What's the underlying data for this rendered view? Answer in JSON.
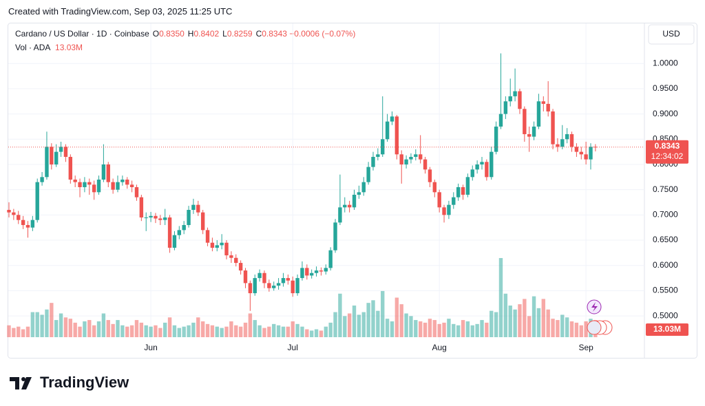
{
  "chart_data": {
    "type": "candlestick",
    "watermark": "Created with TradingView.com, Sep 03, 2025 11:25 UTC",
    "symbol": "Cardano / US Dollar · 1D · Coinbase",
    "ohlc": [
      {
        "key": "O",
        "value": "0.8350"
      },
      {
        "key": "H",
        "value": "0.8402"
      },
      {
        "key": "L",
        "value": "0.8259"
      },
      {
        "key": "C",
        "value": "0.8343"
      }
    ],
    "change": "−0.0006 (−0.07%)",
    "volume_title": "Vol · ADA",
    "volume_value": "13.03M",
    "currency": "USD",
    "price_label": "0.8343",
    "countdown": "12:34:02",
    "volume_label": "13.03M",
    "brand": "TradingView",
    "up_color": "#26a69a",
    "down_color": "#ef5350",
    "grid": true,
    "ylim": [
      0.417,
      1.078
    ],
    "yticks": [
      {
        "value": 0.5,
        "label": "0.5000"
      },
      {
        "value": 0.55,
        "label": "0.5500"
      },
      {
        "value": 0.6,
        "label": "0.6000"
      },
      {
        "value": 0.65,
        "label": "0.6500"
      },
      {
        "value": 0.7,
        "label": "0.7000"
      },
      {
        "value": 0.75,
        "label": "0.7500"
      },
      {
        "value": 0.8,
        "label": "0.8000"
      },
      {
        "value": 0.85,
        "label": "0.8500"
      },
      {
        "value": 0.9,
        "label": "0.9000"
      },
      {
        "value": 0.95,
        "label": "0.9500"
      },
      {
        "value": 1.0,
        "label": "1.0000"
      }
    ],
    "categories": [
      null,
      null,
      null,
      null,
      null,
      null,
      null,
      null,
      null,
      null,
      null,
      null,
      null,
      null,
      null,
      null,
      null,
      null,
      null,
      null,
      null,
      null,
      null,
      null,
      null,
      null,
      null,
      null,
      null,
      null,
      "Jun",
      null,
      null,
      null,
      null,
      null,
      null,
      null,
      null,
      null,
      null,
      null,
      null,
      null,
      null,
      null,
      null,
      null,
      null,
      null,
      null,
      null,
      null,
      null,
      null,
      null,
      null,
      null,
      null,
      null,
      "Jul",
      null,
      null,
      null,
      null,
      null,
      null,
      null,
      null,
      null,
      null,
      null,
      null,
      null,
      null,
      null,
      null,
      null,
      null,
      null,
      null,
      null,
      null,
      null,
      null,
      null,
      null,
      null,
      null,
      null,
      null,
      "Aug",
      null,
      null,
      null,
      null,
      null,
      null,
      null,
      null,
      null,
      null,
      null,
      null,
      null,
      null,
      null,
      null,
      null,
      null,
      null,
      null,
      null,
      null,
      null,
      null,
      null,
      null,
      null,
      null,
      null,
      null,
      "Sep",
      null,
      null
    ],
    "open": [
      0.71,
      0.705,
      0.7,
      0.69,
      0.68,
      0.675,
      0.69,
      0.765,
      0.775,
      0.835,
      0.8,
      0.825,
      0.835,
      0.815,
      0.77,
      0.765,
      0.755,
      0.765,
      0.76,
      0.745,
      0.77,
      0.8,
      0.765,
      0.75,
      0.765,
      0.77,
      0.76,
      0.755,
      0.735,
      0.695,
      0.695,
      0.698,
      0.693,
      0.69,
      0.695,
      0.635,
      0.66,
      0.67,
      0.68,
      0.71,
      0.72,
      0.705,
      0.67,
      0.645,
      0.635,
      0.64,
      0.645,
      0.62,
      0.615,
      0.605,
      0.59,
      0.565,
      0.545,
      0.575,
      0.585,
      0.565,
      0.555,
      0.56,
      0.565,
      0.575,
      0.57,
      0.545,
      0.575,
      0.595,
      0.58,
      0.585,
      0.59,
      0.588,
      0.595,
      0.63,
      0.685,
      0.715,
      0.72,
      0.715,
      0.74,
      0.745,
      0.765,
      0.795,
      0.815,
      0.82,
      0.85,
      0.885,
      0.895,
      0.82,
      0.8,
      0.81,
      0.815,
      0.82,
      0.81,
      0.79,
      0.765,
      0.745,
      0.715,
      0.7,
      0.72,
      0.735,
      0.755,
      0.74,
      0.775,
      0.79,
      0.8,
      0.805,
      0.775,
      0.825,
      0.875,
      0.9,
      0.925,
      0.935,
      0.945,
      0.91,
      0.86,
      0.855,
      0.875,
      0.925,
      0.92,
      0.905,
      0.84,
      0.835,
      0.85,
      0.86,
      0.835,
      0.825,
      0.82,
      0.81,
      0.835
    ],
    "high": [
      0.725,
      0.712,
      0.708,
      0.698,
      0.688,
      0.698,
      0.772,
      0.785,
      0.865,
      0.842,
      0.84,
      0.845,
      0.84,
      0.82,
      0.778,
      0.772,
      0.775,
      0.772,
      0.768,
      0.778,
      0.84,
      0.805,
      0.772,
      0.778,
      0.778,
      0.775,
      0.768,
      0.76,
      0.74,
      0.705,
      0.706,
      0.704,
      0.7,
      0.712,
      0.7,
      0.668,
      0.678,
      0.688,
      0.718,
      0.732,
      0.728,
      0.71,
      0.675,
      0.655,
      0.65,
      0.662,
      0.65,
      0.628,
      0.622,
      0.61,
      0.595,
      0.57,
      0.582,
      0.592,
      0.59,
      0.572,
      0.568,
      0.575,
      0.585,
      0.582,
      0.578,
      0.582,
      0.608,
      0.602,
      0.592,
      0.598,
      0.596,
      0.602,
      0.636,
      0.692,
      0.78,
      0.735,
      0.728,
      0.75,
      0.758,
      0.775,
      0.805,
      0.825,
      0.832,
      0.935,
      0.9,
      0.905,
      0.898,
      0.828,
      0.818,
      0.822,
      0.83,
      0.858,
      0.815,
      0.795,
      0.77,
      0.75,
      0.72,
      0.728,
      0.745,
      0.762,
      0.76,
      0.782,
      0.798,
      0.808,
      0.815,
      0.81,
      0.835,
      0.885,
      1.02,
      0.935,
      0.97,
      0.99,
      0.95,
      0.915,
      0.875,
      0.885,
      0.94,
      0.935,
      0.965,
      0.91,
      0.852,
      0.878,
      0.872,
      0.865,
      0.842,
      0.835,
      0.845,
      0.842,
      0.8402
    ],
    "low": [
      0.695,
      0.69,
      0.682,
      0.672,
      0.655,
      0.668,
      0.685,
      0.758,
      0.77,
      0.79,
      0.795,
      0.815,
      0.805,
      0.762,
      0.755,
      0.735,
      0.745,
      0.74,
      0.73,
      0.74,
      0.765,
      0.755,
      0.742,
      0.745,
      0.758,
      0.752,
      0.745,
      0.728,
      0.688,
      0.668,
      0.686,
      0.684,
      0.68,
      0.68,
      0.625,
      0.63,
      0.652,
      0.662,
      0.675,
      0.702,
      0.698,
      0.662,
      0.638,
      0.628,
      0.628,
      0.632,
      0.612,
      0.605,
      0.598,
      0.582,
      0.555,
      0.51,
      0.54,
      0.568,
      0.555,
      0.548,
      0.55,
      0.552,
      0.558,
      0.562,
      0.538,
      0.54,
      0.57,
      0.572,
      0.574,
      0.578,
      0.58,
      0.582,
      0.59,
      0.625,
      0.68,
      0.705,
      0.705,
      0.71,
      0.732,
      0.738,
      0.76,
      0.788,
      0.808,
      0.815,
      0.845,
      0.878,
      0.81,
      0.762,
      0.792,
      0.802,
      0.808,
      0.802,
      0.782,
      0.755,
      0.735,
      0.705,
      0.685,
      0.692,
      0.712,
      0.728,
      0.73,
      0.735,
      0.768,
      0.782,
      0.79,
      0.768,
      0.77,
      0.82,
      0.87,
      0.89,
      0.915,
      0.925,
      0.9,
      0.845,
      0.825,
      0.848,
      0.87,
      0.905,
      0.895,
      0.83,
      0.825,
      0.83,
      0.842,
      0.825,
      0.815,
      0.81,
      0.8,
      0.79,
      0.8259
    ],
    "close": [
      0.705,
      0.7,
      0.69,
      0.68,
      0.675,
      0.69,
      0.765,
      0.775,
      0.835,
      0.8,
      0.825,
      0.835,
      0.815,
      0.77,
      0.765,
      0.755,
      0.765,
      0.76,
      0.745,
      0.77,
      0.8,
      0.765,
      0.75,
      0.765,
      0.77,
      0.76,
      0.755,
      0.735,
      0.695,
      0.695,
      0.698,
      0.693,
      0.69,
      0.695,
      0.635,
      0.66,
      0.67,
      0.68,
      0.71,
      0.72,
      0.705,
      0.67,
      0.645,
      0.635,
      0.64,
      0.645,
      0.62,
      0.615,
      0.605,
      0.59,
      0.565,
      0.545,
      0.575,
      0.585,
      0.565,
      0.555,
      0.56,
      0.565,
      0.575,
      0.57,
      0.545,
      0.575,
      0.595,
      0.58,
      0.585,
      0.59,
      0.588,
      0.595,
      0.63,
      0.685,
      0.715,
      0.72,
      0.715,
      0.74,
      0.745,
      0.765,
      0.795,
      0.815,
      0.82,
      0.85,
      0.885,
      0.895,
      0.82,
      0.8,
      0.81,
      0.815,
      0.82,
      0.81,
      0.79,
      0.765,
      0.745,
      0.715,
      0.7,
      0.72,
      0.735,
      0.755,
      0.74,
      0.775,
      0.79,
      0.8,
      0.805,
      0.775,
      0.825,
      0.875,
      0.9,
      0.925,
      0.935,
      0.945,
      0.91,
      0.86,
      0.855,
      0.875,
      0.925,
      0.92,
      0.905,
      0.84,
      0.835,
      0.85,
      0.86,
      0.835,
      0.825,
      0.82,
      0.81,
      0.835,
      0.8343
    ],
    "volume": [
      9,
      7,
      8,
      6,
      8,
      19,
      19,
      17,
      21,
      26,
      13,
      18,
      15,
      14,
      11,
      8,
      12,
      13,
      9,
      12,
      18,
      13,
      10,
      13,
      9,
      8,
      9,
      13,
      11,
      9,
      8,
      9,
      7,
      11,
      15,
      9,
      7,
      8,
      9,
      11,
      15,
      12,
      10,
      9,
      8,
      7,
      8,
      12,
      9,
      8,
      11,
      18,
      13,
      9,
      7,
      8,
      10,
      9,
      8,
      8,
      12,
      10,
      8,
      6,
      5,
      6,
      5,
      8,
      11,
      19,
      33,
      16,
      18,
      24,
      17,
      19,
      26,
      28,
      20,
      35,
      14,
      12,
      30,
      25,
      18,
      16,
      13,
      12,
      11,
      14,
      13,
      10,
      11,
      14,
      10,
      9,
      13,
      12,
      9,
      10,
      13,
      11,
      20,
      19,
      60,
      33,
      24,
      21,
      25,
      29,
      16,
      31,
      22,
      29,
      21,
      14,
      13,
      17,
      15,
      12,
      11,
      9,
      12,
      14,
      13.03
    ]
  }
}
